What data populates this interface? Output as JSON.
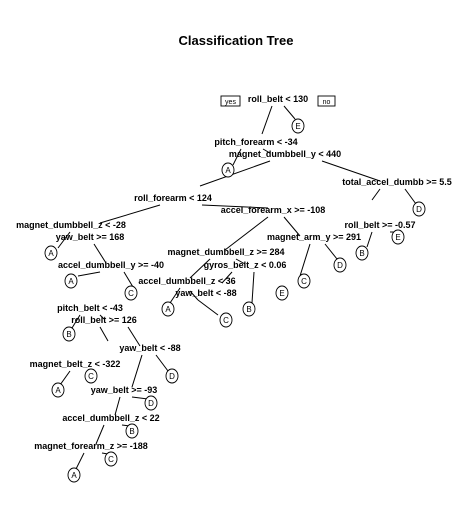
{
  "title": "Classification Tree",
  "legend": {
    "yes": "yes",
    "no": "no"
  },
  "splits": [
    "roll_belt < 130",
    "pitch_forearm < -34",
    "magnet_dumbbell_y < 440",
    "total_accel_dumbb >= 5.5",
    "roll_forearm < 124",
    "accel_forearm_x >= -108",
    "roll_belt >= -0.57",
    "magnet_dumbbell_z < -28",
    "yaw_belt >= 168",
    "magnet_dumbbell_z >= 284",
    "magnet_arm_y >= 291",
    "gyros_belt_z < 0.06",
    "accel_dumbbell_y >= -40",
    "accel_dumbbell_z < 36",
    "yaw_belt < -88",
    "pitch_belt < -43",
    "roll_belt >= 126",
    "yaw_belt < -88",
    "magnet_belt_z < -322",
    "yaw_belt >= -93",
    "accel_dumbbell_z < 22",
    "magnet_forearm_z >= -188"
  ],
  "leaves": [
    "E",
    "A",
    "D",
    "E",
    "B",
    "A",
    "D",
    "E",
    "C",
    "C",
    "A",
    "B",
    "A",
    "C",
    "B",
    "A",
    "C",
    "D",
    "D",
    "B",
    "C",
    "A"
  ]
}
